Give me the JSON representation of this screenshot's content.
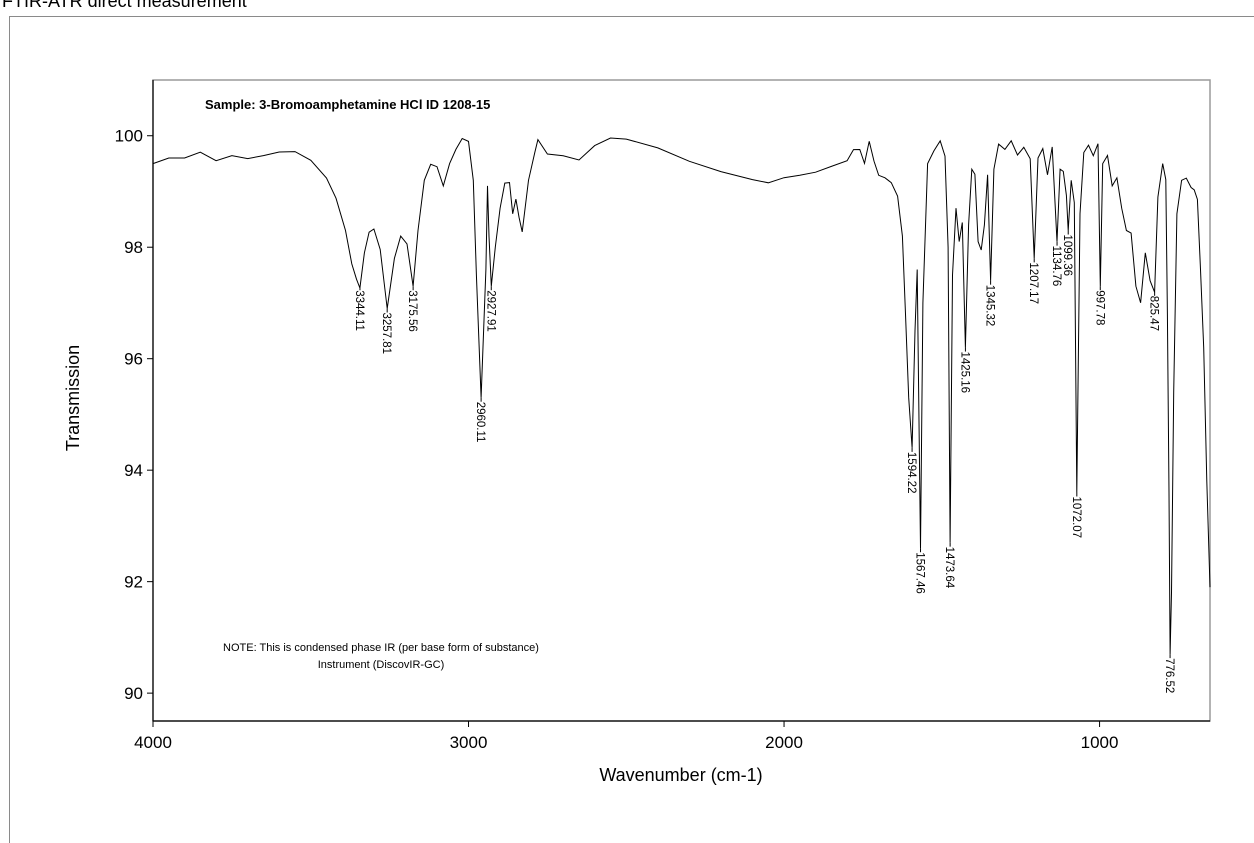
{
  "header": {
    "text": "FTIR-ATR direct measurement"
  },
  "chart_data": {
    "type": "line",
    "title": "Sample: 3-Bromoamphetamine HCl ID 1208-15",
    "xlabel": "Wavenumber (cm-1)",
    "ylabel": "Transmission",
    "xlim": [
      4000,
      650
    ],
    "ylim": [
      89.5,
      101
    ],
    "x_reversed": true,
    "x_ticks": [
      4000,
      3000,
      2000,
      1000
    ],
    "x_tick_labels": [
      "4000",
      "3000",
      "2000",
      "1000"
    ],
    "y_ticks": [
      90,
      92,
      94,
      96,
      98,
      100
    ],
    "y_tick_labels": [
      "90",
      "92",
      "94",
      "96",
      "98",
      "100"
    ],
    "grid": false,
    "line_color": "#000000",
    "series": [
      {
        "x": [
          4000,
          3950,
          3900,
          3850,
          3800,
          3750,
          3700,
          3650,
          3600,
          3550,
          3500,
          3450,
          3420,
          3390,
          3370,
          3355,
          3344.11,
          3330,
          3315,
          3300,
          3280,
          3257.81,
          3235,
          3215,
          3195,
          3175.56,
          3160,
          3140,
          3120,
          3100,
          3080,
          3060,
          3040,
          3020,
          3000,
          2985,
          2975,
          2960.11,
          2945,
          2940,
          2935,
          2927.91,
          2915,
          2900,
          2885,
          2870,
          2860,
          2850,
          2840,
          2830,
          2810,
          2790,
          2780,
          2750,
          2700,
          2650,
          2600,
          2550,
          2500,
          2400,
          2300,
          2200,
          2100,
          2050,
          2000,
          1950,
          1900,
          1850,
          1800,
          1780,
          1760,
          1745,
          1730,
          1715,
          1700,
          1680,
          1660,
          1640,
          1625,
          1615,
          1605,
          1594.22,
          1585,
          1578,
          1567.46,
          1560,
          1545,
          1525,
          1505,
          1490,
          1480,
          1473.64,
          1466,
          1455,
          1445,
          1435,
          1425.16,
          1415,
          1405,
          1395,
          1385,
          1375,
          1365,
          1355,
          1345.32,
          1335,
          1320,
          1300,
          1280,
          1260,
          1240,
          1220,
          1207.17,
          1195,
          1180,
          1165,
          1150,
          1134.76,
          1125,
          1115,
          1105,
          1099.36,
          1090,
          1080,
          1072.07,
          1062,
          1050,
          1035,
          1020,
          1005,
          997.78,
          990,
          975,
          960,
          945,
          930,
          915,
          900,
          885,
          870,
          855,
          840,
          825.47,
          815,
          800,
          790,
          785,
          780,
          776.52,
          772,
          765,
          755,
          740,
          725,
          710,
          700,
          690,
          680,
          670,
          660,
          650
        ],
        "y": [
          99.5,
          99.6,
          99.6,
          99.7,
          99.6,
          99.7,
          99.6,
          99.6,
          99.65,
          99.7,
          99.6,
          99.3,
          98.9,
          98.3,
          97.7,
          97.4,
          97.3,
          97.9,
          98.3,
          98.3,
          97.9,
          96.9,
          97.8,
          98.2,
          98.1,
          97.3,
          98.3,
          99.2,
          99.5,
          99.5,
          99.1,
          99.5,
          99.7,
          99.9,
          99.9,
          99.2,
          97.5,
          95.3,
          97.6,
          99.1,
          98.2,
          97.3,
          98.0,
          98.7,
          99.15,
          99.1,
          98.6,
          98.9,
          98.6,
          98.3,
          99.2,
          99.7,
          99.9,
          99.7,
          99.7,
          99.6,
          99.8,
          99.9,
          99.9,
          99.8,
          99.6,
          99.4,
          99.2,
          99.1,
          99.2,
          99.3,
          99.4,
          99.5,
          99.55,
          99.7,
          99.7,
          99.5,
          99.9,
          99.6,
          99.3,
          99.2,
          99.1,
          98.9,
          98.2,
          96.8,
          95.3,
          94.4,
          96.5,
          97.6,
          92.6,
          97.0,
          99.5,
          99.7,
          99.85,
          99.6,
          98.0,
          92.7,
          97.5,
          98.7,
          98.1,
          98.4,
          96.2,
          98.4,
          99.4,
          99.3,
          98.1,
          97.9,
          98.4,
          99.3,
          97.4,
          99.4,
          99.85,
          99.7,
          99.9,
          99.7,
          99.85,
          99.6,
          97.8,
          99.6,
          99.75,
          99.3,
          99.8,
          98.1,
          99.4,
          99.3,
          98.9,
          98.3,
          99.2,
          98.8,
          93.6,
          98.6,
          99.7,
          99.85,
          99.7,
          99.9,
          97.3,
          99.5,
          99.6,
          99.1,
          99.3,
          98.7,
          98.3,
          98.2,
          97.3,
          97.0,
          97.9,
          97.4,
          97.2,
          98.9,
          99.5,
          99.2,
          96.8,
          93.6,
          90.7,
          91.8,
          95.4,
          98.6,
          99.2,
          99.3,
          99.1,
          99.0,
          98.8,
          97.6,
          96.2,
          93.8,
          91.9
        ]
      }
    ],
    "peak_labels": [
      {
        "x": 3344.11,
        "y": 97.3,
        "label": "3344.11"
      },
      {
        "x": 3257.81,
        "y": 96.9,
        "label": "3257.81"
      },
      {
        "x": 3175.56,
        "y": 97.3,
        "label": "3175.56"
      },
      {
        "x": 2960.11,
        "y": 95.3,
        "label": "2960.11"
      },
      {
        "x": 2927.91,
        "y": 97.3,
        "label": "2927.91"
      },
      {
        "x": 1594.22,
        "y": 94.4,
        "label": "1594.22"
      },
      {
        "x": 1567.46,
        "y": 92.6,
        "label": "1567.46"
      },
      {
        "x": 1473.64,
        "y": 92.7,
        "label": "1473.64"
      },
      {
        "x": 1425.16,
        "y": 96.2,
        "label": "1425.16"
      },
      {
        "x": 1345.32,
        "y": 97.4,
        "label": "1345.32"
      },
      {
        "x": 1207.17,
        "y": 97.8,
        "label": "1207.17"
      },
      {
        "x": 1134.76,
        "y": 98.1,
        "label": "1134.76"
      },
      {
        "x": 1099.36,
        "y": 98.3,
        "label": "1099.36"
      },
      {
        "x": 1072.07,
        "y": 93.6,
        "label": "1072.07"
      },
      {
        "x": 997.78,
        "y": 97.3,
        "label": "997.78"
      },
      {
        "x": 825.47,
        "y": 97.2,
        "label": "825.47"
      },
      {
        "x": 776.52,
        "y": 90.7,
        "label": "776.52"
      }
    ],
    "note_lines": [
      "NOTE: This is condensed phase IR (per base form of substance)",
      "Instrument (DiscovIR-GC)"
    ]
  }
}
